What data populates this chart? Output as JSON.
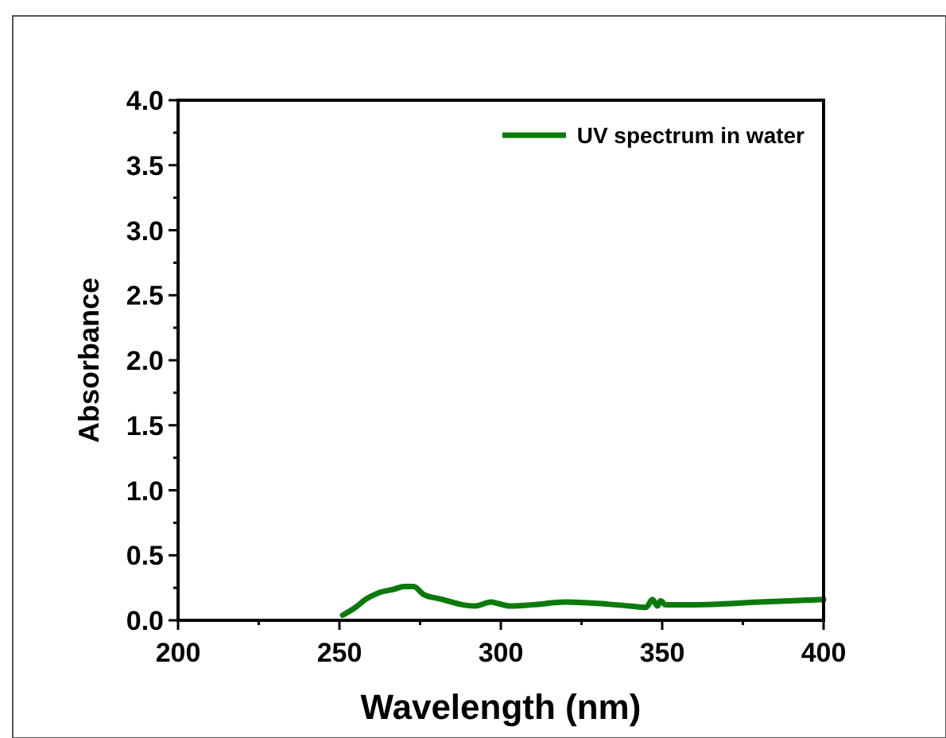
{
  "chart_data": {
    "type": "line",
    "xlabel": "Wavelength (nm)",
    "ylabel": "Absorbance",
    "xlim": [
      200,
      400
    ],
    "xticks": [
      200,
      {
        "value": 225,
        "label": null
      },
      250,
      {
        "value": 275,
        "label": null
      },
      300,
      {
        "value": 325,
        "label": null
      },
      350,
      {
        "value": 375,
        "label": null
      },
      400
    ],
    "ylim": [
      0,
      4
    ],
    "yticks": [
      {
        "value": 0,
        "label": "0.0"
      },
      {
        "value": 0.25,
        "label": null
      },
      0.5,
      {
        "value": 0.75,
        "label": null
      },
      {
        "value": 1,
        "label": "1.0"
      },
      {
        "value": 1.25,
        "label": null
      },
      1.5,
      {
        "value": 1.75,
        "label": null
      },
      {
        "value": 2,
        "label": "2.0"
      },
      {
        "value": 2.25,
        "label": null
      },
      2.5,
      {
        "value": 2.75,
        "label": null
      },
      {
        "value": 3,
        "label": "3.0"
      },
      {
        "value": 3.25,
        "label": null
      },
      3.5,
      {
        "value": 3.75,
        "label": null
      },
      {
        "value": 4,
        "label": "4.0"
      }
    ],
    "grid": false,
    "legend": "top right",
    "line_style": "solid",
    "marker": "none",
    "x": [
      251,
      255,
      258,
      262,
      267,
      270,
      273,
      276,
      282,
      288,
      292,
      297,
      299,
      303,
      310,
      320,
      330,
      340,
      345,
      347,
      348.5,
      349.5,
      351,
      360,
      380,
      400
    ],
    "series": [
      {
        "name": "UV spectrum in water",
        "color": "#0b7a0b",
        "values": [
          0.04,
          0.1,
          0.16,
          0.21,
          0.24,
          0.26,
          0.26,
          0.2,
          0.16,
          0.12,
          0.11,
          0.14,
          0.13,
          0.11,
          0.12,
          0.14,
          0.13,
          0.11,
          0.1,
          0.16,
          0.11,
          0.15,
          0.12,
          0.12,
          0.14,
          0.16
        ]
      }
    ]
  }
}
